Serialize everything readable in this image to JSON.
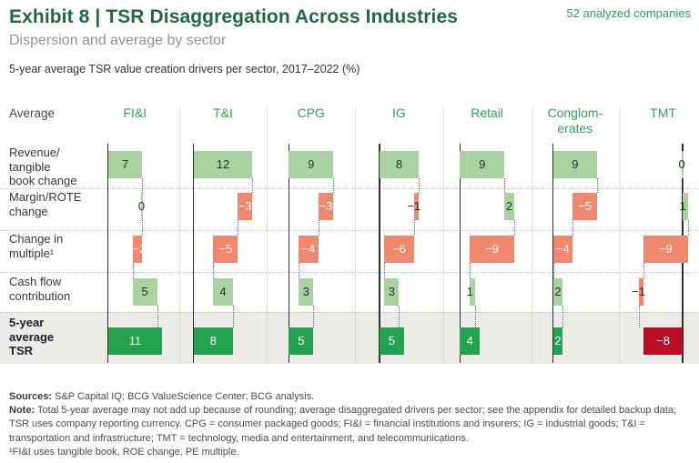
{
  "header": {
    "title": "Exhibit 8 | TSR Disaggregation Across Industries",
    "subtitle": "Dispersion and average by sector",
    "badge": "52 analyzed companies",
    "caption": "5-year average TSR value creation drivers per sector, 2017–2022 (%)"
  },
  "chart_data": {
    "type": "bar",
    "subtype": "waterfall-per-sector",
    "title": "5-year average TSR value creation drivers per sector, 2017–2022 (%)",
    "corner_label": "Average",
    "categories": [
      "FI&I",
      "T&I",
      "CPG",
      "IG",
      "Retail",
      "Conglomerates",
      "TMT"
    ],
    "categories_display": [
      "FI&I",
      "T&I",
      "CPG",
      "IG",
      "Retail",
      "Conglom-\nerates",
      "TMT"
    ],
    "row_labels": [
      "Revenue/tangible book change",
      "Margin/ROTE change",
      "Change in multiple¹",
      "Cash flow contribution",
      "5-year average TSR"
    ],
    "row_labels_display": [
      "Revenue/\ntangible\nbook change",
      "Margin/ROTE\nchange",
      "Change in\nmultiple¹",
      "Cash flow\ncontribution",
      "5-year\naverage\nTSR"
    ],
    "series": [
      {
        "name": "Revenue/tangible book change",
        "values": [
          7,
          12,
          9,
          8,
          9,
          9,
          0
        ]
      },
      {
        "name": "Margin/ROTE change",
        "values": [
          0,
          -3,
          -3,
          -1,
          2,
          -5,
          1
        ]
      },
      {
        "name": "Change in multiple",
        "values": [
          -2,
          -5,
          -4,
          -6,
          -9,
          -4,
          -9
        ]
      },
      {
        "name": "Cash flow contribution",
        "values": [
          5,
          4,
          3,
          3,
          1,
          2,
          -1
        ]
      }
    ],
    "totals": {
      "name": "5-year average TSR",
      "values": [
        11,
        8,
        5,
        5,
        4,
        2,
        -8
      ]
    },
    "value_unit": "%",
    "grid": "dotted row and column separators",
    "legend": "none",
    "colors": {
      "positive_driver": "#a8d3a0",
      "negative_driver": "#f0886d",
      "total_positive": "#24a34f",
      "total_negative": "#bc0d26",
      "axis_line": "#2f2f2f",
      "label_dark": "#2d2d2d",
      "label_light": "#ffffff",
      "total_row_band": "#edebe7",
      "accent_green": "#2fa15c",
      "title_green": "#1d6a40"
    }
  },
  "footer": {
    "sources_label": "Sources:",
    "sources_text": " S&P Capital IQ; BCG ValueScience Center; BCG analysis.",
    "note_label": "Note:",
    "note_text": " Total 5-year average may not add up because of rounding; average disaggregated drivers per sector; see the appendix for detailed backup data; TSR uses company reporting currency. CPG = consumer packaged goods; FI&I = financial institutions and insurers; IG = industrial goods; T&I = transportation and infrastructure; TMT = technology, media and entertainment, and telecommunications.",
    "footnote": "¹FI&I uses tangible book, ROE change, PE multiple."
  }
}
